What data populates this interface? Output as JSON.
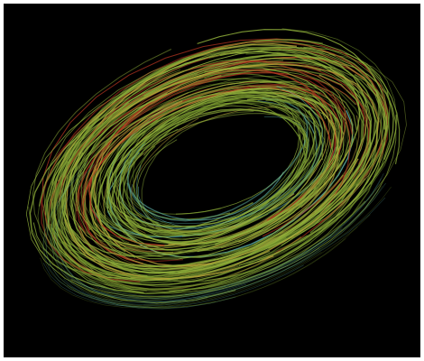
{
  "image": {
    "background": "#000000",
    "frame_color": "#ffffff",
    "subject": "flow-line-torus",
    "palette": {
      "green": "#8fae3a",
      "olive": "#6f8f2a",
      "yellow": "#b8a238",
      "red": "#b0321f",
      "cyan": "#5fb3a8"
    }
  }
}
